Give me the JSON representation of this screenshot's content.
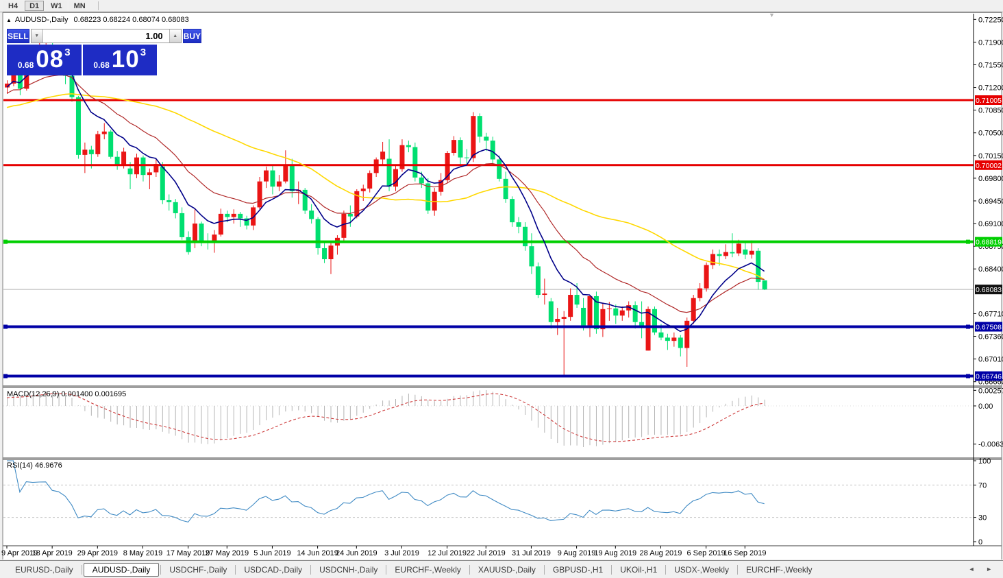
{
  "toolbar": {
    "timeframes": [
      "H4",
      "D1",
      "W1",
      "MN"
    ],
    "active": "D1"
  },
  "chart": {
    "symbol": "AUDUSD-,Daily",
    "ohlc": "0.68223 0.68224 0.68074 0.68083"
  },
  "icons": {
    "title_marker": "▲",
    "collapse_marker": "▼",
    "spinner_down": "▼",
    "spinner_up": "▲",
    "scroll_left": "◄",
    "scroll_right": "►"
  },
  "trade_panel": {
    "sell_label": "SELL",
    "buy_label": "BUY",
    "volume": "1.00",
    "sell_price_small": "0.68",
    "sell_price_big": "08",
    "sell_price_sup": "3",
    "buy_price_small": "0.68",
    "buy_price_big": "10",
    "buy_price_sup": "3"
  },
  "price_axis": {
    "labels": [
      "0.72250",
      "0.71900",
      "0.71550",
      "0.71200",
      "0.70850",
      "0.70500",
      "0.70150",
      "0.69800",
      "0.69450",
      "0.69100",
      "0.68750",
      "0.68400",
      "0.67710",
      "0.67360",
      "0.67010",
      "0.66660"
    ]
  },
  "macd_panel": {
    "label": "MACD(12,26,9) 0.001400 0.001695",
    "axis": [
      {
        "text": "0.002574",
        "value": 0.002574
      },
      {
        "text": "0.00",
        "value": 0
      },
      {
        "text": "-0.006326",
        "value": -0.006326
      }
    ]
  },
  "rsi_panel": {
    "label": "RSI(14) 46.9676",
    "axis": [
      {
        "text": "100",
        "value": 100
      },
      {
        "text": "70",
        "value": 70
      },
      {
        "text": "30",
        "value": 30
      },
      {
        "text": "0",
        "value": 0
      }
    ],
    "guide_levels": [
      70,
      30
    ]
  },
  "tabs": {
    "items": [
      "EURUSD-,Daily",
      "AUDUSD-,Daily",
      "USDCHF-,Daily",
      "USDCAD-,Daily",
      "USDCNH-,Daily",
      "EURCHF-,Weekly",
      "XAUUSD-,Daily",
      "GBPUSD-,H1",
      "UKOil-,H1",
      "USDX-,Weekly",
      "EURCHF-,Weekly"
    ],
    "active_index": 1
  },
  "colors": {
    "up_candle": "#ea1515",
    "down_candle": "#00df70",
    "ma_fast_blue": "#000089",
    "ma_mid_red": "#b02828",
    "ma_slow_yellow": "#ffd800",
    "level_red": "#e60000",
    "level_green": "#00cf00",
    "level_blue": "#0000a6",
    "histogram": "#b4b4b4",
    "macd_signal": "#cd3a3a",
    "rsi_line": "#3f8ac4",
    "badge_black": "#111111",
    "panel_blue": "#1e2cc4",
    "current_price_line": "#b4b4b4"
  },
  "chart_data": {
    "type": "candlestick",
    "symbol": "AUDUSD",
    "timeframe": "Daily",
    "price_range_visible": [
      0.6666,
      0.7225
    ],
    "current_bid": 0.68083,
    "levels": [
      {
        "value": 0.71005,
        "color_key": "level_red",
        "handles": false
      },
      {
        "value": 0.70002,
        "color_key": "level_red",
        "handles": false
      },
      {
        "value": 0.68819,
        "color_key": "level_green",
        "handles": true
      },
      {
        "value": 0.67508,
        "color_key": "level_blue",
        "handles": true
      },
      {
        "value": 0.66746,
        "color_key": "level_blue",
        "handles": true
      }
    ],
    "x_ticks": [
      [
        "9 Apr 2019",
        0
      ],
      [
        "18 Apr 2019",
        7
      ],
      [
        "29 Apr 2019",
        14
      ],
      [
        "8 May 2019",
        21
      ],
      [
        "17 May 2019",
        28
      ],
      [
        "27 May 2019",
        34
      ],
      [
        "5 Jun 2019",
        41
      ],
      [
        "14 Jun 2019",
        48
      ],
      [
        "24 Jun 2019",
        54
      ],
      [
        "3 Jul 2019",
        61
      ],
      [
        "12 Jul 2019",
        68
      ],
      [
        "22 Jul 2019",
        74
      ],
      [
        "31 Jul 2019",
        81
      ],
      [
        "9 Aug 2019",
        88
      ],
      [
        "19 Aug 2019",
        94
      ],
      [
        "28 Aug 2019",
        101
      ],
      [
        "6 Sep 2019",
        108
      ],
      [
        "16 Sep 2019",
        114
      ]
    ],
    "moving_averages": [
      {
        "period": 9,
        "type": "ema",
        "color_key": "ma_fast_blue",
        "width": 1.6
      },
      {
        "period": 20,
        "type": "ema",
        "color_key": "ma_mid_red",
        "width": 1.2
      },
      {
        "period": 45,
        "type": "sma",
        "color_key": "ma_slow_yellow",
        "width": 1.6
      }
    ],
    "macd": {
      "fast": 12,
      "slow": 26,
      "signal": 9,
      "main_value": 0.0014,
      "signal_value": 0.001695
    },
    "rsi": {
      "period": 14,
      "value": 46.9676
    },
    "candles": [
      [
        0.712,
        0.7131,
        0.711,
        0.7126
      ],
      [
        0.7126,
        0.7168,
        0.7122,
        0.7166
      ],
      [
        0.7166,
        0.7169,
        0.7108,
        0.7118
      ],
      [
        0.7118,
        0.7177,
        0.7115,
        0.7175
      ],
      [
        0.7175,
        0.7182,
        0.716,
        0.7173
      ],
      [
        0.7173,
        0.719,
        0.7165,
        0.7176
      ],
      [
        0.7176,
        0.7197,
        0.717,
        0.7177
      ],
      [
        0.7177,
        0.7195,
        0.7148,
        0.7155
      ],
      [
        0.7155,
        0.7161,
        0.7145,
        0.7151
      ],
      [
        0.7151,
        0.716,
        0.7125,
        0.7138
      ],
      [
        0.7138,
        0.7142,
        0.7098,
        0.7105
      ],
      [
        0.7105,
        0.7107,
        0.701,
        0.7016
      ],
      [
        0.7016,
        0.7035,
        0.6988,
        0.7024
      ],
      [
        0.7024,
        0.703,
        0.6995,
        0.7017
      ],
      [
        0.7017,
        0.7053,
        0.7013,
        0.7048
      ],
      [
        0.7048,
        0.7065,
        0.704,
        0.7052
      ],
      [
        0.7052,
        0.7055,
        0.701,
        0.7013
      ],
      [
        0.7013,
        0.7022,
        0.6993,
        0.7
      ],
      [
        0.7,
        0.7027,
        0.6995,
        0.7021
      ],
      [
        0.6995,
        0.7005,
        0.6963,
        0.6986
      ],
      [
        0.6986,
        0.7018,
        0.698,
        0.7012
      ],
      [
        0.7012,
        0.7015,
        0.6975,
        0.6985
      ],
      [
        0.6985,
        0.6995,
        0.6963,
        0.6989
      ],
      [
        0.6989,
        0.701,
        0.6982,
        0.7002
      ],
      [
        0.6998,
        0.7005,
        0.694,
        0.6946
      ],
      [
        0.6946,
        0.6955,
        0.693,
        0.6943
      ],
      [
        0.6943,
        0.6948,
        0.6918,
        0.6926
      ],
      [
        0.6926,
        0.6935,
        0.6885,
        0.6889
      ],
      [
        0.6889,
        0.6898,
        0.6862,
        0.6866
      ],
      [
        0.688,
        0.6934,
        0.6872,
        0.691
      ],
      [
        0.691,
        0.6913,
        0.6875,
        0.6882
      ],
      [
        0.6882,
        0.6895,
        0.687,
        0.688
      ],
      [
        0.688,
        0.69,
        0.6865,
        0.6893
      ],
      [
        0.6893,
        0.6933,
        0.689,
        0.6925
      ],
      [
        0.6925,
        0.693,
        0.6912,
        0.692
      ],
      [
        0.692,
        0.6932,
        0.691,
        0.6925
      ],
      [
        0.6925,
        0.6928,
        0.6905,
        0.6918
      ],
      [
        0.6918,
        0.6922,
        0.6901,
        0.6907
      ],
      [
        0.6907,
        0.6938,
        0.69,
        0.6935
      ],
      [
        0.6935,
        0.6982,
        0.6932,
        0.6975
      ],
      [
        0.6975,
        0.6998,
        0.6965,
        0.6992
      ],
      [
        0.6992,
        0.7,
        0.6955,
        0.6967
      ],
      [
        0.6967,
        0.6985,
        0.696,
        0.6975
      ],
      [
        0.6975,
        0.7023,
        0.6972,
        0.7
      ],
      [
        0.7,
        0.701,
        0.695,
        0.696
      ],
      [
        0.696,
        0.6975,
        0.694,
        0.6962
      ],
      [
        0.6962,
        0.6965,
        0.6925,
        0.693
      ],
      [
        0.693,
        0.694,
        0.691,
        0.6917
      ],
      [
        0.6917,
        0.692,
        0.6862,
        0.6872
      ],
      [
        0.6872,
        0.688,
        0.6849,
        0.6855
      ],
      [
        0.6855,
        0.688,
        0.6832,
        0.6876
      ],
      [
        0.6876,
        0.6892,
        0.6862,
        0.6888
      ],
      [
        0.6888,
        0.693,
        0.6883,
        0.6925
      ],
      [
        0.6925,
        0.6938,
        0.6905,
        0.6921
      ],
      [
        0.6921,
        0.6963,
        0.6918,
        0.696
      ],
      [
        0.696,
        0.697,
        0.6945,
        0.6964
      ],
      [
        0.6964,
        0.6992,
        0.6958,
        0.6988
      ],
      [
        0.6988,
        0.7012,
        0.6982,
        0.7009
      ],
      [
        0.7009,
        0.7036,
        0.7,
        0.7021
      ],
      [
        0.701,
        0.704,
        0.696,
        0.6967
      ],
      [
        0.6967,
        0.7,
        0.696,
        0.6994
      ],
      [
        0.6994,
        0.704,
        0.699,
        0.7031
      ],
      [
        0.7031,
        0.7038,
        0.702,
        0.7028
      ],
      [
        0.7028,
        0.7035,
        0.6975,
        0.6981
      ],
      [
        0.6981,
        0.699,
        0.6965,
        0.6972
      ],
      [
        0.6972,
        0.698,
        0.6925,
        0.693
      ],
      [
        0.693,
        0.6965,
        0.6922,
        0.6959
      ],
      [
        0.6959,
        0.6988,
        0.6953,
        0.6977
      ],
      [
        0.6977,
        0.7022,
        0.6972,
        0.7019
      ],
      [
        0.7019,
        0.7045,
        0.7015,
        0.7039
      ],
      [
        0.7039,
        0.7043,
        0.7,
        0.7012
      ],
      [
        0.7012,
        0.7025,
        0.7,
        0.7011
      ],
      [
        0.7011,
        0.7082,
        0.7005,
        0.7076
      ],
      [
        0.7076,
        0.708,
        0.7035,
        0.7044
      ],
      [
        0.7044,
        0.705,
        0.7022,
        0.7038
      ],
      [
        0.7038,
        0.7044,
        0.7,
        0.7009
      ],
      [
        0.7009,
        0.7015,
        0.6975,
        0.6979
      ],
      [
        0.6979,
        0.699,
        0.6942,
        0.6948
      ],
      [
        0.6948,
        0.6952,
        0.6905,
        0.6912
      ],
      [
        0.6912,
        0.692,
        0.6895,
        0.6905
      ],
      [
        0.6905,
        0.6912,
        0.6868,
        0.6875
      ],
      [
        0.6875,
        0.6895,
        0.6832,
        0.6844
      ],
      [
        0.6844,
        0.685,
        0.6795,
        0.68
      ],
      [
        0.68,
        0.6825,
        0.6785,
        0.6802
      ],
      [
        0.679,
        0.6795,
        0.6748,
        0.6758
      ],
      [
        0.6758,
        0.678,
        0.6738,
        0.6763
      ],
      [
        0.6763,
        0.6775,
        0.6675,
        0.6766
      ],
      [
        0.6766,
        0.681,
        0.676,
        0.68
      ],
      [
        0.68,
        0.6818,
        0.678,
        0.6785
      ],
      [
        0.678,
        0.6795,
        0.6745,
        0.6753
      ],
      [
        0.6753,
        0.68,
        0.6735,
        0.6798
      ],
      [
        0.6798,
        0.6805,
        0.674,
        0.6747
      ],
      [
        0.6747,
        0.6788,
        0.6735,
        0.6778
      ],
      [
        0.6778,
        0.6789,
        0.676,
        0.6779
      ],
      [
        0.6779,
        0.6785,
        0.6755,
        0.6768
      ],
      [
        0.6768,
        0.6782,
        0.676,
        0.6776
      ],
      [
        0.6776,
        0.679,
        0.6765,
        0.6784
      ],
      [
        0.6784,
        0.679,
        0.6748,
        0.6758
      ],
      [
        0.6758,
        0.679,
        0.6733,
        0.6752
      ],
      [
        0.6714,
        0.6782,
        0.6714,
        0.6778
      ],
      [
        0.6778,
        0.6782,
        0.6738,
        0.6742
      ],
      [
        0.6742,
        0.6755,
        0.673,
        0.6734
      ],
      [
        0.6734,
        0.674,
        0.6715,
        0.6729
      ],
      [
        0.6729,
        0.6742,
        0.672,
        0.6734
      ],
      [
        0.6734,
        0.6738,
        0.6705,
        0.6718
      ],
      [
        0.6718,
        0.6765,
        0.6689,
        0.676
      ],
      [
        0.676,
        0.68,
        0.6755,
        0.6795
      ],
      [
        0.6795,
        0.6818,
        0.679,
        0.681
      ],
      [
        0.681,
        0.685,
        0.6805,
        0.6846
      ],
      [
        0.6846,
        0.687,
        0.684,
        0.6863
      ],
      [
        0.6863,
        0.687,
        0.6845,
        0.686
      ],
      [
        0.686,
        0.6878,
        0.6855,
        0.6866
      ],
      [
        0.6866,
        0.6895,
        0.6858,
        0.6864
      ],
      [
        0.6864,
        0.6885,
        0.686,
        0.6879
      ],
      [
        0.687,
        0.688,
        0.6855,
        0.6862
      ],
      [
        0.6862,
        0.6884,
        0.6856,
        0.6868
      ],
      [
        0.6868,
        0.6872,
        0.6808,
        0.682
      ],
      [
        0.68223,
        0.68224,
        0.68074,
        0.68083
      ]
    ]
  }
}
